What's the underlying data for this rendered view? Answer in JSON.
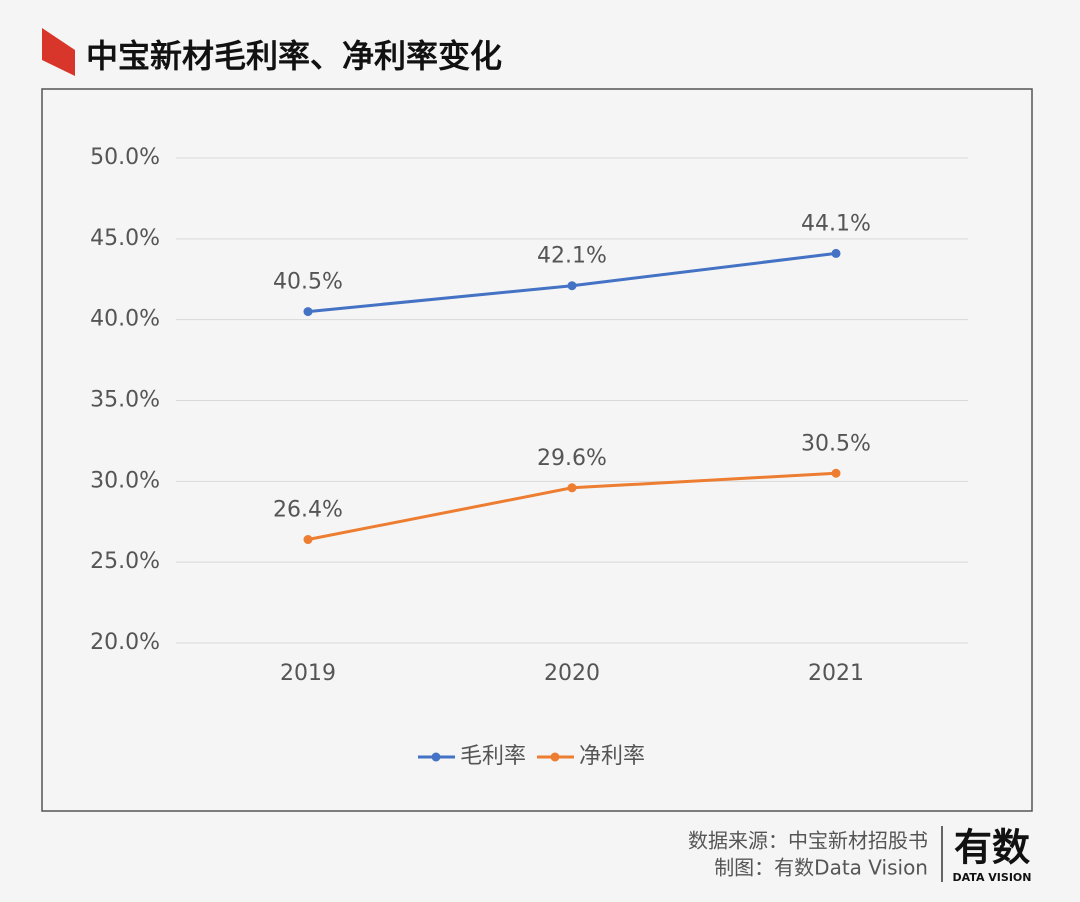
{
  "chart_data": {
    "type": "line",
    "title": "中宝新材毛利率、净利率变化",
    "categories": [
      "2019",
      "2020",
      "2021"
    ],
    "series": [
      {
        "name": "毛利率",
        "color": "#4472c4",
        "values": [
          40.5,
          42.1,
          44.1
        ],
        "value_labels": [
          "40.5%",
          "42.1%",
          "44.1%"
        ]
      },
      {
        "name": "净利率",
        "color": "#ed7d31",
        "values": [
          26.4,
          29.6,
          30.5
        ],
        "value_labels": [
          "26.4%",
          "29.6%",
          "30.5%"
        ]
      }
    ],
    "ylim": [
      20,
      50
    ],
    "yticks": [
      {
        "value": 20,
        "label": "20.0%"
      },
      {
        "value": 25,
        "label": "25.0%"
      },
      {
        "value": 30,
        "label": "30.0%"
      },
      {
        "value": 35,
        "label": "35.0%"
      },
      {
        "value": 40,
        "label": "40.0%"
      },
      {
        "value": 45,
        "label": "45.0%"
      },
      {
        "value": 50,
        "label": "50.0%"
      }
    ],
    "grid": true,
    "legend": "bottom"
  },
  "footer": {
    "source": "数据来源：中宝新材招股书",
    "credit": "制图：有数Data Vision",
    "logo": "有数",
    "logo_subtitle": "DATA VISION"
  }
}
